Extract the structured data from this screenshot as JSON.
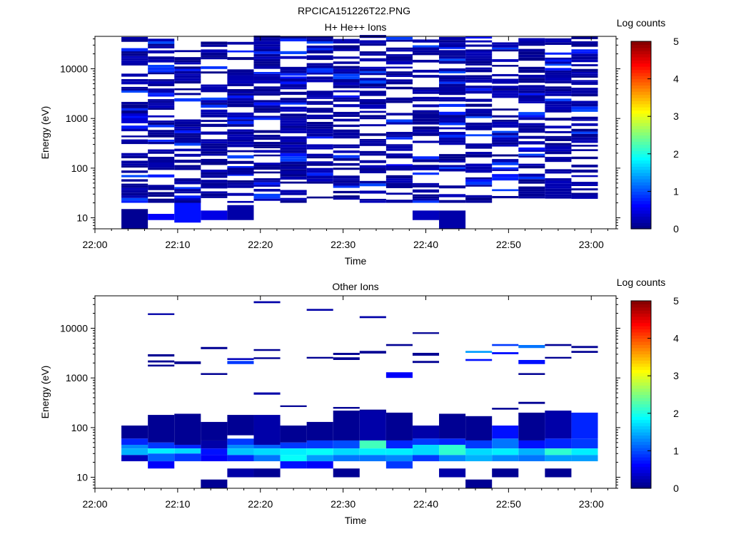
{
  "figure_title": "RPCICA151226T22.PNG",
  "colorbar_palette": [
    "#00007f",
    "#0000ff",
    "#007fff",
    "#00ffff",
    "#7fff7f",
    "#ffff00",
    "#ff7f00",
    "#ff0000",
    "#7f0000"
  ],
  "chart_data": [
    {
      "type": "heatmap",
      "title": "H+ He++ Ions",
      "xlabel": "Time",
      "ylabel": "Energy (eV)",
      "x_ticks": [
        "22:00",
        "22:10",
        "22:20",
        "22:30",
        "22:40",
        "22:50",
        "23:00"
      ],
      "xlim_minutes_after_22_00": [
        0,
        63
      ],
      "y_scale": "log",
      "ylim": [
        6,
        45000
      ],
      "y_ticks": [
        "10",
        "100",
        "1000",
        "10000"
      ],
      "colorbar": {
        "label": "Log counts",
        "range": [
          0,
          5
        ],
        "ticks": [
          "0",
          "1",
          "2",
          "3",
          "4",
          "5"
        ]
      },
      "time_bins_minutes": [
        3.2,
        6.4,
        9.6,
        12.8,
        16.0,
        19.2,
        22.4,
        25.6,
        28.8,
        32.0,
        35.2,
        38.4,
        41.6,
        44.8,
        48.0,
        51.2,
        54.4,
        57.6
      ],
      "cells": [
        {
          "t": 3.2,
          "emin": 6,
          "emax": 15,
          "v": 0.1
        },
        {
          "t": 6.4,
          "emin": 9,
          "emax": 12,
          "v": 0.6
        },
        {
          "t": 9.6,
          "emin": 8,
          "emax": 25,
          "v": 0.7
        },
        {
          "t": 12.8,
          "emin": 9,
          "emax": 14,
          "v": 0.5
        },
        {
          "t": 16.0,
          "emin": 9,
          "emax": 18,
          "v": 0.2
        },
        {
          "t": 38.4,
          "emin": 9,
          "emax": 14,
          "v": 0.3
        },
        {
          "t": 41.6,
          "emin": 6,
          "emax": 14,
          "v": 0.2
        },
        {
          "t": 3.2,
          "emin": 800,
          "emax": 1300,
          "v": 0.4
        },
        {
          "t": 16.0,
          "emin": 70,
          "emax": 110,
          "v": 0.8
        },
        {
          "t": 22.4,
          "emin": 5000,
          "emax": 7000,
          "v": 0.7
        },
        {
          "t": 25.6,
          "emin": 9000,
          "emax": 11000,
          "v": 0.8
        },
        {
          "t": 32.0,
          "emin": 4500,
          "emax": 6000,
          "v": 0.7
        },
        {
          "t": 35.2,
          "emin": 100,
          "emax": 120,
          "v": 0.6
        },
        {
          "t": 41.6,
          "emin": 25000,
          "emax": 30000,
          "v": 0.8
        },
        {
          "t": 41.6,
          "emin": 3000,
          "emax": 4000,
          "v": 0.7
        }
      ]
    },
    {
      "type": "heatmap",
      "title": "Other Ions",
      "xlabel": "Time",
      "ylabel": "Energy (eV)",
      "x_ticks": [
        "22:00",
        "22:10",
        "22:20",
        "22:30",
        "22:40",
        "22:50",
        "23:00"
      ],
      "xlim_minutes_after_22_00": [
        0,
        63
      ],
      "y_scale": "log",
      "ylim": [
        6,
        45000
      ],
      "y_ticks": [
        "10",
        "100",
        "1000",
        "10000"
      ],
      "colorbar": {
        "label": "Log counts",
        "range": [
          0,
          5
        ],
        "ticks": [
          "0",
          "1",
          "2",
          "3",
          "4",
          "5"
        ]
      },
      "cells": [
        {
          "t": 6.4,
          "emin": 18500,
          "emax": 20000,
          "v": 0.2
        },
        {
          "t": 19.2,
          "emin": 32000,
          "emax": 35000,
          "v": 0.2
        },
        {
          "t": 25.6,
          "emin": 22500,
          "emax": 24500,
          "v": 0.2
        },
        {
          "t": 32.0,
          "emin": 16000,
          "emax": 17500,
          "v": 0.2
        },
        {
          "t": 6.4,
          "emin": 2700,
          "emax": 3000,
          "v": 0.1
        },
        {
          "t": 6.4,
          "emin": 2050,
          "emax": 2250,
          "v": 0.1
        },
        {
          "t": 6.4,
          "emin": 1700,
          "emax": 1850,
          "v": 0.1
        },
        {
          "t": 9.6,
          "emin": 1900,
          "emax": 2150,
          "v": 0.1
        },
        {
          "t": 12.8,
          "emin": 3800,
          "emax": 4200,
          "v": 0.1
        },
        {
          "t": 12.8,
          "emin": 1150,
          "emax": 1250,
          "v": 0.1
        },
        {
          "t": 16.0,
          "emin": 2300,
          "emax": 2500,
          "v": 0.3
        },
        {
          "t": 16.0,
          "emin": 1900,
          "emax": 2200,
          "v": 0.9
        },
        {
          "t": 19.2,
          "emin": 3500,
          "emax": 3800,
          "v": 0.1
        },
        {
          "t": 19.2,
          "emin": 2400,
          "emax": 2600,
          "v": 0.1
        },
        {
          "t": 19.2,
          "emin": 460,
          "emax": 510,
          "v": 0.2
        },
        {
          "t": 25.6,
          "emin": 2450,
          "emax": 2650,
          "v": 0.1
        },
        {
          "t": 28.8,
          "emin": 2900,
          "emax": 3200,
          "v": 0.1
        },
        {
          "t": 28.8,
          "emin": 2300,
          "emax": 2600,
          "v": 0.1
        },
        {
          "t": 32.0,
          "emin": 3100,
          "emax": 3500,
          "v": 0.1
        },
        {
          "t": 35.2,
          "emin": 4400,
          "emax": 4800,
          "v": 0.1
        },
        {
          "t": 35.2,
          "emin": 1000,
          "emax": 1300,
          "v": 0.6
        },
        {
          "t": 38.4,
          "emin": 7700,
          "emax": 8300,
          "v": 0.1
        },
        {
          "t": 38.4,
          "emin": 2800,
          "emax": 3200,
          "v": 0.1
        },
        {
          "t": 38.4,
          "emin": 2000,
          "emax": 2200,
          "v": 0.1
        },
        {
          "t": 44.8,
          "emin": 3200,
          "emax": 3500,
          "v": 1.4
        },
        {
          "t": 44.8,
          "emin": 2200,
          "emax": 2400,
          "v": 0.7
        },
        {
          "t": 48.0,
          "emin": 4400,
          "emax": 4800,
          "v": 0.9
        },
        {
          "t": 48.0,
          "emin": 3000,
          "emax": 3300,
          "v": 0.7
        },
        {
          "t": 51.2,
          "emin": 4000,
          "emax": 4600,
          "v": 1.2
        },
        {
          "t": 51.2,
          "emin": 1900,
          "emax": 2300,
          "v": 0.7
        },
        {
          "t": 51.2,
          "emin": 1150,
          "emax": 1250,
          "v": 0.1
        },
        {
          "t": 54.4,
          "emin": 4400,
          "emax": 4800,
          "v": 0.1
        },
        {
          "t": 54.4,
          "emin": 2450,
          "emax": 2650,
          "v": 0.1
        },
        {
          "t": 57.6,
          "emin": 4000,
          "emax": 4400,
          "v": 0.1
        },
        {
          "t": 57.6,
          "emin": 3200,
          "emax": 3500,
          "v": 0.1
        },
        {
          "t": 22.4,
          "emin": 260,
          "emax": 280,
          "v": 0.1
        },
        {
          "t": 28.8,
          "emin": 240,
          "emax": 260,
          "v": 0.1
        },
        {
          "t": 32.0,
          "emin": 190,
          "emax": 230,
          "v": 0.1
        },
        {
          "t": 48.0,
          "emin": 230,
          "emax": 250,
          "v": 0.1
        },
        {
          "t": 51.2,
          "emin": 300,
          "emax": 330,
          "v": 0.1
        },
        {
          "t": 3.2,
          "emin": 60,
          "emax": 110,
          "v": 0.1
        },
        {
          "t": 3.2,
          "emin": 45,
          "emax": 60,
          "v": 0.8
        },
        {
          "t": 3.2,
          "emin": 38,
          "emax": 45,
          "v": 1.3
        },
        {
          "t": 3.2,
          "emin": 28,
          "emax": 38,
          "v": 1.5
        },
        {
          "t": 3.2,
          "emin": 21,
          "emax": 28,
          "v": 0.3
        },
        {
          "t": 6.4,
          "emin": 50,
          "emax": 180,
          "v": 0.1
        },
        {
          "t": 6.4,
          "emin": 38,
          "emax": 50,
          "v": 0.9
        },
        {
          "t": 6.4,
          "emin": 30,
          "emax": 38,
          "v": 1.8
        },
        {
          "t": 6.4,
          "emin": 21,
          "emax": 30,
          "v": 1.1
        },
        {
          "t": 6.4,
          "emin": 15,
          "emax": 21,
          "v": 0.6
        },
        {
          "t": 9.6,
          "emin": 45,
          "emax": 190,
          "v": 0.1
        },
        {
          "t": 9.6,
          "emin": 38,
          "emax": 45,
          "v": 0.8
        },
        {
          "t": 9.6,
          "emin": 30,
          "emax": 38,
          "v": 1.7
        },
        {
          "t": 9.6,
          "emin": 21,
          "emax": 30,
          "v": 0.9
        },
        {
          "t": 12.8,
          "emin": 55,
          "emax": 130,
          "v": 0.1
        },
        {
          "t": 12.8,
          "emin": 38,
          "emax": 55,
          "v": 0.2
        },
        {
          "t": 12.8,
          "emin": 28,
          "emax": 38,
          "v": 0.7
        },
        {
          "t": 12.8,
          "emin": 21,
          "emax": 28,
          "v": 0.6
        },
        {
          "t": 12.8,
          "emin": 6,
          "emax": 9,
          "v": 0.1
        },
        {
          "t": 16.0,
          "emin": 70,
          "emax": 180,
          "v": 0.1
        },
        {
          "t": 16.0,
          "emin": 45,
          "emax": 60,
          "v": 0.9
        },
        {
          "t": 16.0,
          "emin": 38,
          "emax": 45,
          "v": 1.3
        },
        {
          "t": 16.0,
          "emin": 28,
          "emax": 38,
          "v": 1.6
        },
        {
          "t": 16.0,
          "emin": 21,
          "emax": 28,
          "v": 0.8
        },
        {
          "t": 16.0,
          "emin": 10,
          "emax": 15,
          "v": 0.2
        },
        {
          "t": 19.2,
          "emin": 45,
          "emax": 180,
          "v": 0.2
        },
        {
          "t": 19.2,
          "emin": 38,
          "emax": 45,
          "v": 1.1
        },
        {
          "t": 19.2,
          "emin": 28,
          "emax": 38,
          "v": 1.7
        },
        {
          "t": 19.2,
          "emin": 21,
          "emax": 28,
          "v": 1.2
        },
        {
          "t": 19.2,
          "emin": 10,
          "emax": 15,
          "v": 0.1
        },
        {
          "t": 22.4,
          "emin": 50,
          "emax": 110,
          "v": 0.1
        },
        {
          "t": 22.4,
          "emin": 38,
          "emax": 50,
          "v": 0.9
        },
        {
          "t": 22.4,
          "emin": 28,
          "emax": 38,
          "v": 1.8
        },
        {
          "t": 22.4,
          "emin": 21,
          "emax": 28,
          "v": 1.9
        },
        {
          "t": 22.4,
          "emin": 15,
          "emax": 21,
          "v": 0.7
        },
        {
          "t": 25.6,
          "emin": 55,
          "emax": 130,
          "v": 0.1
        },
        {
          "t": 25.6,
          "emin": 38,
          "emax": 55,
          "v": 0.9
        },
        {
          "t": 25.6,
          "emin": 28,
          "emax": 38,
          "v": 1.9
        },
        {
          "t": 25.6,
          "emin": 21,
          "emax": 28,
          "v": 1.4
        },
        {
          "t": 25.6,
          "emin": 15,
          "emax": 21,
          "v": 0.6
        },
        {
          "t": 28.8,
          "emin": 55,
          "emax": 220,
          "v": 0.1
        },
        {
          "t": 28.8,
          "emin": 38,
          "emax": 55,
          "v": 1.0
        },
        {
          "t": 28.8,
          "emin": 28,
          "emax": 38,
          "v": 1.7
        },
        {
          "t": 28.8,
          "emin": 21,
          "emax": 28,
          "v": 1.2
        },
        {
          "t": 28.8,
          "emin": 10,
          "emax": 15,
          "v": 0.1
        },
        {
          "t": 32.0,
          "emin": 55,
          "emax": 220,
          "v": 0.2
        },
        {
          "t": 32.0,
          "emin": 38,
          "emax": 55,
          "v": 2.2
        },
        {
          "t": 32.0,
          "emin": 28,
          "emax": 38,
          "v": 1.8
        },
        {
          "t": 32.0,
          "emin": 21,
          "emax": 28,
          "v": 1.2
        },
        {
          "t": 35.2,
          "emin": 55,
          "emax": 200,
          "v": 0.1
        },
        {
          "t": 35.2,
          "emin": 38,
          "emax": 55,
          "v": 0.8
        },
        {
          "t": 35.2,
          "emin": 28,
          "emax": 38,
          "v": 1.8
        },
        {
          "t": 35.2,
          "emin": 21,
          "emax": 28,
          "v": 1.3
        },
        {
          "t": 35.2,
          "emin": 15,
          "emax": 21,
          "v": 0.9
        },
        {
          "t": 38.4,
          "emin": 60,
          "emax": 110,
          "v": 0.2
        },
        {
          "t": 38.4,
          "emin": 45,
          "emax": 60,
          "v": 0.9
        },
        {
          "t": 38.4,
          "emin": 28,
          "emax": 45,
          "v": 1.7
        },
        {
          "t": 38.4,
          "emin": 21,
          "emax": 28,
          "v": 0.9
        },
        {
          "t": 41.6,
          "emin": 60,
          "emax": 190,
          "v": 0.1
        },
        {
          "t": 41.6,
          "emin": 45,
          "emax": 60,
          "v": 0.8
        },
        {
          "t": 41.6,
          "emin": 28,
          "emax": 45,
          "v": 2.1
        },
        {
          "t": 41.6,
          "emin": 21,
          "emax": 28,
          "v": 1.3
        },
        {
          "t": 41.6,
          "emin": 10,
          "emax": 15,
          "v": 0.2
        },
        {
          "t": 44.8,
          "emin": 55,
          "emax": 170,
          "v": 0.1
        },
        {
          "t": 44.8,
          "emin": 38,
          "emax": 55,
          "v": 0.9
        },
        {
          "t": 44.8,
          "emin": 28,
          "emax": 38,
          "v": 1.7
        },
        {
          "t": 44.8,
          "emin": 21,
          "emax": 28,
          "v": 1.5
        },
        {
          "t": 44.8,
          "emin": 6,
          "emax": 9,
          "v": 0.1
        },
        {
          "t": 48.0,
          "emin": 60,
          "emax": 110,
          "v": 0.7
        },
        {
          "t": 48.0,
          "emin": 38,
          "emax": 60,
          "v": 1.2
        },
        {
          "t": 48.0,
          "emin": 28,
          "emax": 38,
          "v": 1.8
        },
        {
          "t": 48.0,
          "emin": 21,
          "emax": 28,
          "v": 1.3
        },
        {
          "t": 48.0,
          "emin": 10,
          "emax": 15,
          "v": 0.1
        },
        {
          "t": 51.2,
          "emin": 55,
          "emax": 200,
          "v": 0.1
        },
        {
          "t": 51.2,
          "emin": 38,
          "emax": 55,
          "v": 0.7
        },
        {
          "t": 51.2,
          "emin": 28,
          "emax": 38,
          "v": 1.5
        },
        {
          "t": 51.2,
          "emin": 21,
          "emax": 28,
          "v": 1.2
        },
        {
          "t": 54.4,
          "emin": 60,
          "emax": 220,
          "v": 0.2
        },
        {
          "t": 54.4,
          "emin": 38,
          "emax": 60,
          "v": 0.8
        },
        {
          "t": 54.4,
          "emin": 28,
          "emax": 38,
          "v": 2.1
        },
        {
          "t": 54.4,
          "emin": 21,
          "emax": 28,
          "v": 1.4
        },
        {
          "t": 54.4,
          "emin": 10,
          "emax": 15,
          "v": 0.1
        },
        {
          "t": 57.6,
          "emin": 60,
          "emax": 200,
          "v": 0.8
        },
        {
          "t": 57.6,
          "emin": 38,
          "emax": 60,
          "v": 0.9
        },
        {
          "t": 57.6,
          "emin": 28,
          "emax": 38,
          "v": 1.8
        },
        {
          "t": 57.6,
          "emin": 21,
          "emax": 28,
          "v": 1.4
        }
      ]
    }
  ]
}
